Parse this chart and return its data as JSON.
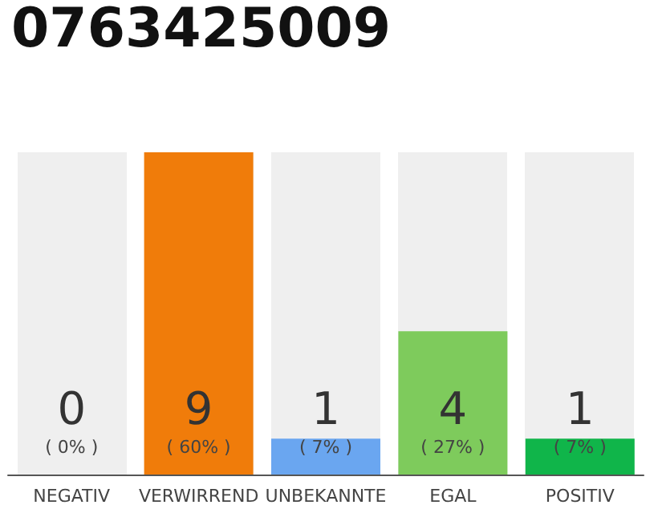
{
  "chart_data": {
    "type": "bar",
    "title": "0763425009",
    "categories": [
      "NEGATIV",
      "VERWIRREND",
      "UNBEKANNTE",
      "EGAL",
      "POSITIV"
    ],
    "values": [
      0,
      9,
      1,
      4,
      1
    ],
    "colors": [
      "#d9d9d9",
      "#f07c0a",
      "#6aa6f0",
      "#7ecb5c",
      "#10b54a"
    ],
    "value_labels": [
      "0\n( 0% )",
      "9\n( 60% )",
      "1\n( 7% )",
      "4\n( 27% )",
      "1\n( 7% )"
    ]
  }
}
